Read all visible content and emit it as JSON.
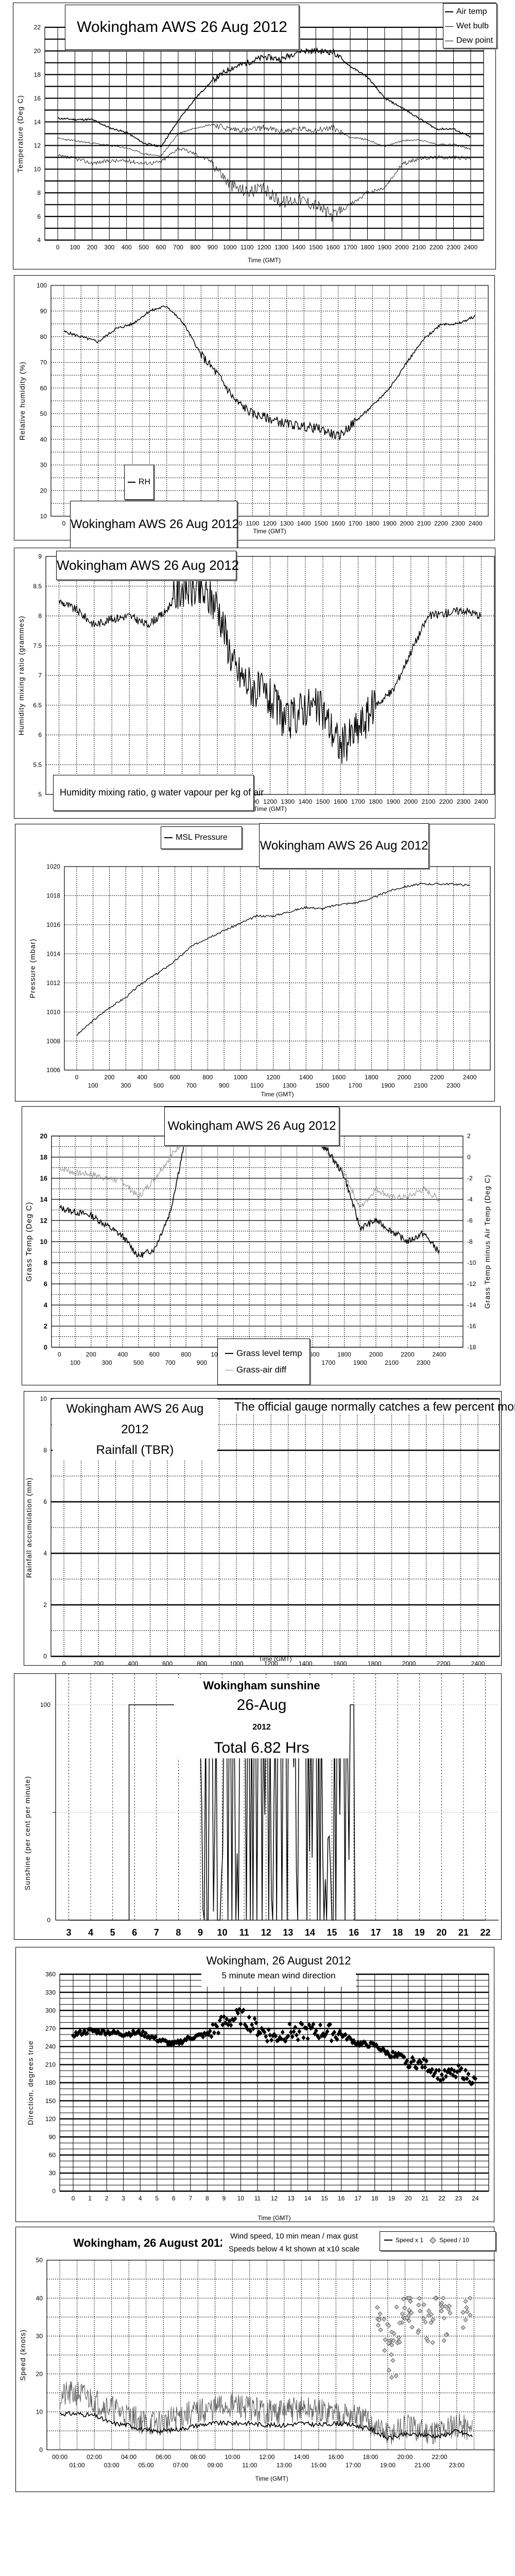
{
  "page": {
    "station": "Wokingham AWS",
    "date": "26 Aug 2012"
  },
  "temp": {
    "title": "Wokingham AWS 26 Aug 2012",
    "ylabel": "Temperature (Deg C)",
    "xlabel": "Time (GMT)",
    "legend": [
      "Air temp",
      "Wet bulb",
      "Dew point"
    ]
  },
  "rh": {
    "title": "Wokingham AWS 26 Aug 2012",
    "ylabel": "Relative humidity (%)",
    "xlabel": "Time (GMT)",
    "legend": [
      "RH"
    ]
  },
  "mix": {
    "title": "Wokingham AWS 26 Aug 2012",
    "ylabel": "Humidity mixing ratio (grammes)",
    "xlabel": "Time (GMT)",
    "legend": [
      "Humidity mixing ratio, g water vapour per kg of air"
    ]
  },
  "pres": {
    "title": "Wokingham AWS 26 Aug 2012",
    "ylabel": "Pressure (mbar)",
    "xlabel": "Time (GMT)",
    "legend": [
      "MSL Pressure"
    ]
  },
  "grass": {
    "title": "Wokingham AWS 26 Aug 2012",
    "ylabel": "Grass Temp (Deg C)",
    "y2label": "Grass Temp minus Air Temp (Deg C)",
    "xlabel": "Time GMT",
    "legend": [
      "Grass level temp",
      "Grass-air diff"
    ]
  },
  "rain": {
    "title": "Wokingham AWS 26 Aug 2012",
    "subtitle": "Rainfall (TBR)",
    "note": "The official gauge normally catches a few percent more",
    "ylabel": "Rainfall accumulation (mm)",
    "xlabel": "Time (GMT)"
  },
  "sun": {
    "title": "Wokingham sunshine",
    "date": "26-Aug",
    "year": "2012",
    "total": "Total 6.82 Hrs",
    "ylabel": "Sunshine (per cent per minute)",
    "xlabel": "Time (GMT)"
  },
  "wdir": {
    "title": "Wokingham,  26 August 2012",
    "subtitle": "5 minute mean wind direction",
    "ylabel": "Direction, degrees true",
    "xlabel": "Time (GMT)"
  },
  "wspd": {
    "title": "Wokingham,  26 August 2012",
    "subtitle1": "Wind speed, 10 min mean / max gust",
    "subtitle2": "Speeds below 4 kt shown at x10 scale",
    "ylabel": "Speed (knots)",
    "xlabel": "Time (GMT)",
    "legend": [
      "Speed x 1",
      "Speed / 10"
    ]
  },
  "chart_data": [
    {
      "type": "line",
      "title": "Wokingham AWS 26 Aug 2012",
      "xlabel": "Time (GMT)",
      "ylabel": "Temperature (Deg C)",
      "ylim": [
        4,
        22
      ],
      "xlim": [
        0,
        2400
      ],
      "yticks": [
        4,
        6,
        8,
        10,
        12,
        14,
        16,
        18,
        20,
        22
      ],
      "x": [
        0,
        100,
        200,
        300,
        400,
        500,
        600,
        700,
        800,
        900,
        1000,
        1100,
        1200,
        1300,
        1400,
        1500,
        1600,
        1700,
        1800,
        1900,
        2000,
        2100,
        2200,
        2300,
        2400
      ],
      "series": [
        {
          "name": "Air temp",
          "values": [
            14.3,
            14.2,
            14.2,
            13.5,
            13.1,
            12.2,
            11.9,
            14.1,
            16.0,
            17.5,
            18.5,
            19.0,
            19.5,
            19.3,
            20.0,
            20.0,
            19.9,
            18.7,
            17.8,
            16.0,
            15.2,
            14.3,
            13.4,
            13.4,
            12.7
          ]
        },
        {
          "name": "Wet bulb",
          "values": [
            12.6,
            12.4,
            12.2,
            12.0,
            11.8,
            11.3,
            11.1,
            13.0,
            13.5,
            13.8,
            13.4,
            13.3,
            13.5,
            13.2,
            13.4,
            13.3,
            13.5,
            12.7,
            12.5,
            11.9,
            12.4,
            12.5,
            12.1,
            12.1,
            11.7
          ]
        },
        {
          "name": "Dew point",
          "values": [
            11.1,
            10.9,
            10.5,
            10.7,
            10.7,
            10.5,
            10.6,
            11.8,
            11.3,
            10.6,
            8.7,
            8.1,
            8.3,
            7.2,
            7.5,
            7.0,
            6.0,
            7.0,
            8.0,
            8.4,
            10.4,
            10.9,
            11.0,
            11.0,
            10.9
          ]
        }
      ],
      "legend_position": "top-right",
      "grid": true
    },
    {
      "type": "line",
      "title": "Wokingham AWS 26 Aug 2012",
      "xlabel": "Time (GMT)",
      "ylabel": "Relative humidity (%)",
      "ylim": [
        10,
        100
      ],
      "xlim": [
        0,
        2400
      ],
      "yticks": [
        10,
        20,
        30,
        40,
        50,
        60,
        70,
        80,
        90,
        100
      ],
      "x": [
        0,
        100,
        200,
        300,
        400,
        500,
        600,
        700,
        800,
        900,
        1000,
        1100,
        1200,
        1300,
        1400,
        1500,
        1600,
        1700,
        1800,
        1900,
        2000,
        2100,
        2200,
        2300,
        2400
      ],
      "series": [
        {
          "name": "RH",
          "values": [
            82,
            80,
            78,
            83,
            85,
            90,
            92,
            85,
            73,
            65,
            55,
            50,
            48,
            46,
            45,
            44,
            41,
            47,
            53,
            60,
            70,
            79,
            85,
            85,
            88
          ]
        }
      ],
      "legend_position": "bottom-left",
      "grid": true
    },
    {
      "type": "line",
      "title": "Wokingham AWS 26 Aug 2012",
      "xlabel": "Time (GMT)",
      "ylabel": "Humidity mixing ratio (grammes)",
      "ylim": [
        5,
        9
      ],
      "xlim": [
        0,
        2400
      ],
      "yticks": [
        5,
        5.5,
        6,
        6.5,
        7,
        7.5,
        8,
        8.5,
        9
      ],
      "x": [
        0,
        100,
        200,
        300,
        400,
        500,
        600,
        700,
        800,
        900,
        1000,
        1100,
        1200,
        1300,
        1400,
        1500,
        1600,
        1700,
        1800,
        1900,
        2000,
        2100,
        2200,
        2300,
        2400
      ],
      "series": [
        {
          "name": "Humidity mixing ratio, g water vapour per kg of air",
          "values": [
            8.25,
            8.1,
            7.85,
            7.95,
            8.0,
            7.85,
            8.05,
            8.5,
            8.4,
            8.2,
            7.1,
            6.8,
            6.6,
            6.2,
            6.5,
            6.4,
            5.8,
            6.1,
            6.5,
            6.75,
            7.4,
            8.0,
            8.05,
            8.1,
            8.0
          ]
        }
      ],
      "legend_position": "bottom-left",
      "grid": true
    },
    {
      "type": "line",
      "title": "Wokingham AWS 26 Aug 2012",
      "xlabel": "Time (GMT)",
      "ylabel": "Pressure (mbar)",
      "ylim": [
        1006,
        1020
      ],
      "xlim": [
        0,
        2400
      ],
      "yticks": [
        1006,
        1008,
        1010,
        1012,
        1014,
        1016,
        1018,
        1020
      ],
      "x": [
        0,
        100,
        200,
        300,
        400,
        500,
        600,
        700,
        800,
        900,
        1000,
        1100,
        1200,
        1300,
        1400,
        1500,
        1600,
        1700,
        1800,
        1900,
        2000,
        2100,
        2200,
        2300,
        2400
      ],
      "series": [
        {
          "name": "MSL Pressure",
          "values": [
            1008.4,
            1009.4,
            1010.3,
            1011.0,
            1012.0,
            1012.7,
            1013.5,
            1014.5,
            1015.1,
            1015.6,
            1016.1,
            1016.6,
            1016.6,
            1016.9,
            1017.2,
            1017.1,
            1017.4,
            1017.5,
            1017.8,
            1018.3,
            1018.6,
            1018.8,
            1018.8,
            1018.8,
            1018.7
          ]
        }
      ],
      "legend_position": "top-center",
      "grid": true
    },
    {
      "type": "line",
      "title": "Wokingham AWS 26 Aug 2012",
      "xlabel": "Time GMT",
      "ylabel": "Grass Temp (Deg C)",
      "y2label": "Grass Temp minus Air Temp (Deg C)",
      "ylim": [
        0,
        20
      ],
      "y2lim": [
        -18,
        2
      ],
      "xlim": [
        0,
        2400
      ],
      "yticks": [
        0,
        2,
        4,
        6,
        8,
        10,
        12,
        14,
        16,
        18,
        20
      ],
      "y2ticks": [
        -18,
        -16,
        -14,
        -12,
        -10,
        -8,
        -6,
        -4,
        -2,
        0,
        2
      ],
      "x": [
        0,
        100,
        200,
        300,
        400,
        500,
        600,
        700,
        800,
        1600,
        1700,
        1800,
        1900,
        2000,
        2100,
        2200,
        2300,
        2400
      ],
      "series": [
        {
          "name": "Grass level temp",
          "axis": "left",
          "values": [
            13.2,
            12.8,
            12.5,
            11.5,
            10.5,
            8.6,
            9.3,
            12.8,
            20,
            20,
            18.5,
            16.2,
            11.3,
            12.0,
            11.0,
            10.0,
            10.8,
            9.0
          ]
        },
        {
          "name": "Grass-air diff",
          "axis": "right",
          "values": [
            -1.0,
            -1.5,
            -1.6,
            -2.0,
            -2.3,
            -3.8,
            -2.0,
            0.0,
            2.0,
            2.0,
            0.2,
            -1.5,
            -4.8,
            -3.0,
            -3.8,
            -3.8,
            -3.0,
            -4.0
          ]
        }
      ],
      "legend_position": "bottom-center",
      "grid": true
    },
    {
      "type": "line",
      "title": "Wokingham AWS 26 Aug 2012 Rainfall (TBR)",
      "annotation": "The official gauge normally catches a few percent more",
      "xlabel": "Time (GMT)",
      "ylabel": "Rainfall accumulation (mm)",
      "ylim": [
        0,
        10
      ],
      "xlim": [
        0,
        2400
      ],
      "yticks": [
        0,
        2,
        4,
        6,
        8,
        10
      ],
      "x": [
        0,
        2400
      ],
      "series": [
        {
          "name": "Rainfall",
          "values": [
            0,
            0
          ]
        }
      ],
      "grid": true
    },
    {
      "type": "line",
      "title": "Wokingham sunshine 26-Aug 2012",
      "annotation": "Total 6.82 Hrs",
      "xlabel": "Time (GMT)",
      "ylabel": "Sunshine (per cent per minute)",
      "ylim": [
        0,
        100
      ],
      "xlim": [
        3,
        22
      ],
      "yticks": [
        0,
        100
      ],
      "xticks": [
        3,
        4,
        5,
        6,
        7,
        8,
        9,
        10,
        11,
        12,
        13,
        14,
        15,
        16,
        17,
        18,
        19,
        20,
        21,
        22
      ],
      "sunny_intervals_hours": [
        [
          5.75,
          9.0
        ],
        [
          9.0,
          16.0,
          "intermittent"
        ]
      ],
      "summary": {
        "total_hours": 6.82,
        "sunrise_on": 5.75,
        "last_sun": 16.0
      },
      "grid": true
    },
    {
      "type": "scatter",
      "title": "Wokingham,  26 August 2012",
      "subtitle": "5 minute mean wind direction",
      "xlabel": "Time (GMT)",
      "ylabel": "Direction, degrees true",
      "ylim": [
        0,
        360
      ],
      "xlim": [
        0,
        24
      ],
      "yticks": [
        0,
        30,
        60,
        90,
        120,
        150,
        180,
        210,
        240,
        270,
        300,
        330,
        360
      ],
      "x": [
        0,
        1,
        2,
        3,
        4,
        5,
        6,
        7,
        8,
        9,
        10,
        11,
        12,
        13,
        14,
        15,
        16,
        17,
        18,
        19,
        20,
        21,
        22,
        23,
        24
      ],
      "values": [
        260,
        266,
        264,
        261,
        263,
        252,
        243,
        255,
        260,
        280,
        290,
        270,
        255,
        265,
        265,
        265,
        260,
        245,
        242,
        225,
        215,
        210,
        190,
        200,
        182
      ],
      "grid": true
    },
    {
      "type": "line",
      "title": "Wokingham,  26 August 2012",
      "subtitle": "Wind speed, 10 min mean / max gust; Speeds below 4 kt shown at x10 scale",
      "xlabel": "Time (GMT)",
      "ylabel": "Speed (knots)",
      "ylim": [
        0,
        50
      ],
      "xlim": [
        0,
        24
      ],
      "yticks": [
        0,
        10,
        20,
        30,
        40,
        50
      ],
      "x": [
        0,
        1,
        2,
        3,
        4,
        5,
        6,
        7,
        8,
        9,
        10,
        11,
        12,
        13,
        14,
        15,
        16,
        17,
        18,
        19,
        20,
        21,
        22,
        23,
        23.9
      ],
      "series": [
        {
          "name": "10 min mean",
          "values": [
            9.5,
            9.5,
            9,
            7,
            6.5,
            5,
            5,
            5.5,
            6.5,
            7,
            7,
            7,
            6.5,
            6.5,
            7,
            6.5,
            7,
            6.5,
            5.5,
            3,
            4,
            4,
            3.5,
            5,
            3.5
          ]
        },
        {
          "name": "max gust",
          "values": [
            14,
            15,
            13,
            11,
            9,
            7,
            7,
            9,
            10,
            11,
            12,
            11,
            10,
            10,
            11,
            10,
            10,
            9,
            7,
            4,
            6,
            5,
            5,
            7,
            5
          ]
        },
        {
          "name": "Speed / 10",
          "scatter_x": [
            18.6,
            19.0,
            19.3,
            19.6,
            20.0,
            20.3,
            21.0,
            21.5,
            22.0,
            22.5,
            23.6
          ],
          "values": [
            34,
            30,
            24,
            33,
            39,
            36,
            35,
            33,
            38,
            33,
            37
          ]
        }
      ],
      "legend": [
        "Speed x 1",
        "Speed / 10"
      ],
      "legend_position": "top-right",
      "grid": true
    }
  ]
}
